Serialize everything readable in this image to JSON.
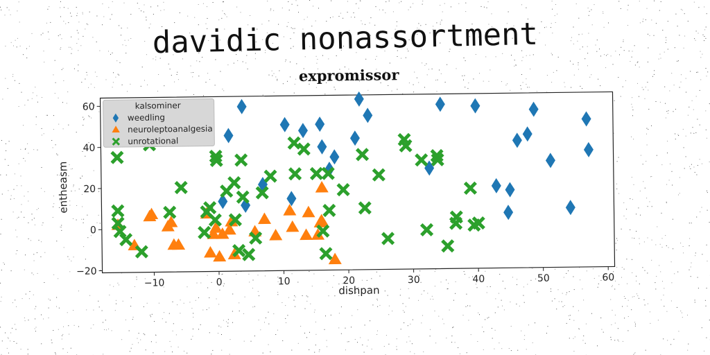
{
  "chart_data": {
    "type": "scatter",
    "suptitle": "davidic nonassortment",
    "title": "expromissor",
    "xlabel": "dishpan",
    "ylabel": "entheasm",
    "xlim": [
      -18,
      61
    ],
    "ylim": [
      -21,
      64
    ],
    "xticks": [
      -10,
      0,
      10,
      20,
      30,
      40,
      50,
      60
    ],
    "xtick_labels": [
      "−10",
      "0",
      "10",
      "20",
      "30",
      "40",
      "50",
      "60"
    ],
    "yticks": [
      -20,
      0,
      20,
      40,
      60
    ],
    "yticks_labels": [
      "−20",
      "0",
      "20",
      "40",
      "60"
    ],
    "grid": false,
    "legend": {
      "title": "kalsominer",
      "location": "upper-left"
    },
    "series": [
      {
        "name": "weedling",
        "marker": "diamond",
        "color": "#1f77b4",
        "points": [
          [
            0.7,
            13
          ],
          [
            1.7,
            45
          ],
          [
            3.8,
            59
          ],
          [
            4.2,
            11
          ],
          [
            6.9,
            21
          ],
          [
            10.4,
            50
          ],
          [
            11.3,
            14
          ],
          [
            13.2,
            47
          ],
          [
            15.8,
            50
          ],
          [
            16.1,
            39
          ],
          [
            17.2,
            28
          ],
          [
            18,
            34
          ],
          [
            21.2,
            43
          ],
          [
            21.9,
            62
          ],
          [
            23.2,
            54
          ],
          [
            32.6,
            28
          ],
          [
            34.4,
            59
          ],
          [
            39.8,
            58
          ],
          [
            42.9,
            19
          ],
          [
            44.7,
            6
          ],
          [
            45,
            17
          ],
          [
            46.2,
            41
          ],
          [
            47.8,
            44
          ],
          [
            48.8,
            56
          ],
          [
            51.3,
            31
          ],
          [
            54.3,
            8
          ],
          [
            56.9,
            51
          ],
          [
            57.2,
            36
          ]
        ]
      },
      {
        "name": "neuroleptoanalgesia",
        "marker": "triangle",
        "color": "#ff7f0e",
        "points": [
          [
            -15.5,
            2
          ],
          [
            -13,
            -8
          ],
          [
            -10.6,
            6
          ],
          [
            -10.3,
            7
          ],
          [
            -7.8,
            1
          ],
          [
            -7.3,
            3
          ],
          [
            -6.9,
            -8
          ],
          [
            -6.2,
            -8
          ],
          [
            -1.8,
            7
          ],
          [
            -1.3,
            -12
          ],
          [
            -0.8,
            -3
          ],
          [
            -0.4,
            0
          ],
          [
            0.1,
            -14
          ],
          [
            0.6,
            -3
          ],
          [
            1.7,
            -1
          ],
          [
            2,
            3
          ],
          [
            2.4,
            -13
          ],
          [
            5.6,
            -2
          ],
          [
            7.1,
            4
          ],
          [
            8.8,
            -4
          ],
          [
            11,
            8
          ],
          [
            11.4,
            0
          ],
          [
            13.5,
            -4
          ],
          [
            13.9,
            7
          ],
          [
            15.3,
            -4
          ],
          [
            15.7,
            2
          ],
          [
            15.9,
            3
          ],
          [
            16,
            19
          ],
          [
            17.9,
            -16
          ]
        ]
      },
      {
        "name": "unrotational",
        "marker": "x",
        "color": "#2ca02c",
        "points": [
          [
            -15.5,
            35
          ],
          [
            -15.5,
            9
          ],
          [
            -15.5,
            3
          ],
          [
            -15.2,
            -1
          ],
          [
            -14.3,
            -5
          ],
          [
            -11.9,
            -11
          ],
          [
            -10.5,
            41
          ],
          [
            -7.5,
            8
          ],
          [
            -5.7,
            20
          ],
          [
            -2.2,
            -2
          ],
          [
            -1.8,
            8
          ],
          [
            -1.3,
            10
          ],
          [
            -0.5,
            4
          ],
          [
            -0.3,
            35
          ],
          [
            -0.2,
            33
          ],
          [
            1.3,
            18
          ],
          [
            2.5,
            22
          ],
          [
            2.6,
            4
          ],
          [
            3.1,
            -11
          ],
          [
            3.6,
            33
          ],
          [
            3.8,
            15
          ],
          [
            4.6,
            -13
          ],
          [
            5.7,
            -5
          ],
          [
            6.8,
            17
          ],
          [
            8.1,
            25
          ],
          [
            11.8,
            41
          ],
          [
            11.9,
            26
          ],
          [
            13.3,
            38
          ],
          [
            15.2,
            26
          ],
          [
            16.1,
            -2
          ],
          [
            17.1,
            8
          ],
          [
            16.5,
            -13
          ],
          [
            17,
            26
          ],
          [
            19.3,
            18
          ],
          [
            22.3,
            35
          ],
          [
            22.6,
            9
          ],
          [
            24.8,
            25
          ],
          [
            26.1,
            -6
          ],
          [
            28.8,
            42
          ],
          [
            29,
            39
          ],
          [
            31.4,
            32
          ],
          [
            32.1,
            -2
          ],
          [
            33.8,
            34
          ],
          [
            33.9,
            32
          ],
          [
            35.3,
            -10
          ],
          [
            36.6,
            1
          ],
          [
            36.7,
            4
          ],
          [
            38.9,
            18
          ],
          [
            39.4,
            0
          ],
          [
            40.1,
            1
          ]
        ]
      }
    ]
  }
}
